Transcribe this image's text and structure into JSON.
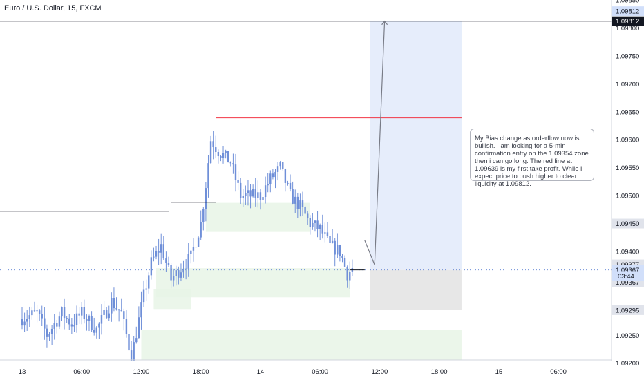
{
  "title": "Euro / U.S. Dollar, 15, FXCM",
  "note_text": "My Bias change as orderflow now is bullish. I am looking for a 5-min confirmation entry on the 1.09354 zone then i can go long. The red line at 1.09639 is my first take profit. While i expect price to push higher to clear liquidity at 1.09812.",
  "colors": {
    "candle": "#6f8fd8",
    "take_profit_line": "#f23645",
    "long_target_zone": "#e6edfb",
    "long_stop_zone": "#e7e7e7",
    "demand_zone": "#e8f4e6",
    "level_line": "#131722",
    "projection": "#787b86",
    "badge_dark": "#131722",
    "badge_gray": "#e0e3eb",
    "badge_blue": "#d1dffa"
  },
  "chart_data": {
    "type": "candlestick",
    "symbol": "EURUSD",
    "timeframe": "15",
    "ylim": [
      1.0917,
      1.0985
    ],
    "y_ticks": [
      "1.09850",
      "1.09800",
      "1.09750",
      "1.09700",
      "1.09650",
      "1.09600",
      "1.09550",
      "1.09500",
      "1.09450",
      "1.09400",
      "1.09350",
      "1.09300",
      "1.09250",
      "1.09200"
    ],
    "x_ticks": [
      "13",
      "06:00",
      "12:00",
      "18:00",
      "14",
      "06:00",
      "12:00",
      "18:00",
      "15",
      "06:00"
    ],
    "x_tick_bar_index": [
      0,
      24,
      48,
      72,
      96,
      120,
      144,
      168,
      192,
      216
    ],
    "last_bar_index": 133,
    "anchors": [
      [
        0,
        1.0928
      ],
      [
        6,
        1.0929
      ],
      [
        10,
        1.0925
      ],
      [
        16,
        1.0929
      ],
      [
        20,
        1.0927
      ],
      [
        24,
        1.0929
      ],
      [
        30,
        1.0926
      ],
      [
        36,
        1.0931
      ],
      [
        40,
        1.0929
      ],
      [
        44,
        1.0921
      ],
      [
        48,
        1.093
      ],
      [
        52,
        1.0938
      ],
      [
        56,
        1.0941
      ],
      [
        60,
        1.0935
      ],
      [
        64,
        1.0937
      ],
      [
        68,
        1.0939
      ],
      [
        72,
        1.0945
      ],
      [
        74,
        1.0952
      ],
      [
        76,
        1.096
      ],
      [
        79,
        1.0958
      ],
      [
        84,
        1.0956
      ],
      [
        88,
        1.095
      ],
      [
        92,
        1.095
      ],
      [
        96,
        1.095
      ],
      [
        100,
        1.0953
      ],
      [
        104,
        1.0955
      ],
      [
        108,
        1.095
      ],
      [
        112,
        1.0948
      ],
      [
        116,
        1.0945
      ],
      [
        120,
        1.0944
      ],
      [
        124,
        1.0941
      ],
      [
        128,
        1.094
      ],
      [
        131,
        1.0936
      ],
      [
        133,
        1.0937
      ]
    ],
    "levels": [
      {
        "price": 1.09812,
        "from_bar": -10,
        "to_bar": 250
      },
      {
        "price": 1.09639,
        "from_bar": 78,
        "to_bar": 177
      },
      {
        "price": 1.09472,
        "from_bar": -10,
        "to_bar": 59
      },
      {
        "price": 1.09488,
        "from_bar": 60,
        "to_bar": 78
      },
      {
        "price": 1.09408,
        "from_bar": 134,
        "to_bar": 140
      },
      {
        "price": 1.09367,
        "from_bar": 132,
        "to_bar": 138
      }
    ],
    "demand_zones": [
      {
        "from_bar": 74,
        "to_bar": 116,
        "high": 1.09487,
        "low": 1.09435
      },
      {
        "from_bar": 54,
        "to_bar": 132,
        "high": 1.0937,
        "low": 1.09318
      },
      {
        "from_bar": 53,
        "to_bar": 68,
        "high": 1.09333,
        "low": 1.09297
      },
      {
        "from_bar": 48,
        "to_bar": 177,
        "high": 1.09259,
        "low": 1.09206
      }
    ],
    "position": {
      "direction": "long",
      "from_bar": 140,
      "to_bar": 177,
      "entry": 1.09367,
      "target": 1.09812,
      "stop": 1.09295
    },
    "projection": [
      [
        138,
        1.0942
      ],
      [
        142,
        1.09376
      ],
      [
        146,
        1.09812
      ]
    ],
    "price_badges": [
      {
        "label": "1.09812",
        "price": 1.09812,
        "style": "badge_dark"
      },
      {
        "label": "1.09812",
        "price": 1.0983,
        "style": "badge_blue"
      },
      {
        "label": "1.09450",
        "price": 1.0945,
        "style": "badge_gray"
      },
      {
        "label": "1.09377",
        "price": 1.09377,
        "style": "badge_gray"
      },
      {
        "label": "1.09367",
        "price": 1.09367,
        "style": "badge_blue"
      },
      {
        "label": "1.09367",
        "price": 1.09345,
        "style": "badge_gray"
      },
      {
        "label": "1.09295",
        "price": 1.09295,
        "style": "badge_gray"
      }
    ],
    "countdown": "03:44",
    "countdown_price": 1.09356
  }
}
